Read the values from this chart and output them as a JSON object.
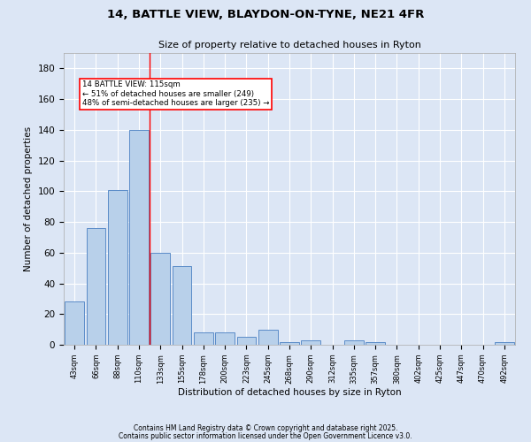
{
  "title1": "14, BATTLE VIEW, BLAYDON-ON-TYNE, NE21 4FR",
  "title2": "Size of property relative to detached houses in Ryton",
  "xlabel": "Distribution of detached houses by size in Ryton",
  "ylabel": "Number of detached properties",
  "categories": [
    "43sqm",
    "66sqm",
    "88sqm",
    "110sqm",
    "133sqm",
    "155sqm",
    "178sqm",
    "200sqm",
    "223sqm",
    "245sqm",
    "268sqm",
    "290sqm",
    "312sqm",
    "335sqm",
    "357sqm",
    "380sqm",
    "402sqm",
    "425sqm",
    "447sqm",
    "470sqm",
    "492sqm"
  ],
  "values": [
    28,
    76,
    101,
    140,
    60,
    51,
    8,
    8,
    5,
    10,
    2,
    3,
    0,
    3,
    2,
    0,
    0,
    0,
    0,
    0,
    2
  ],
  "bar_color": "#b8d0ea",
  "bar_edge_color": "#5b8cc8",
  "bg_color": "#dce6f5",
  "grid_color": "#ffffff",
  "annotation_text": "14 BATTLE VIEW: 115sqm\n← 51% of detached houses are smaller (249)\n48% of semi-detached houses are larger (235) →",
  "red_line_x": 3.5,
  "ylim": [
    0,
    190
  ],
  "yticks": [
    0,
    20,
    40,
    60,
    80,
    100,
    120,
    140,
    160,
    180
  ],
  "footer1": "Contains HM Land Registry data © Crown copyright and database right 2025.",
  "footer2": "Contains public sector information licensed under the Open Government Licence v3.0."
}
